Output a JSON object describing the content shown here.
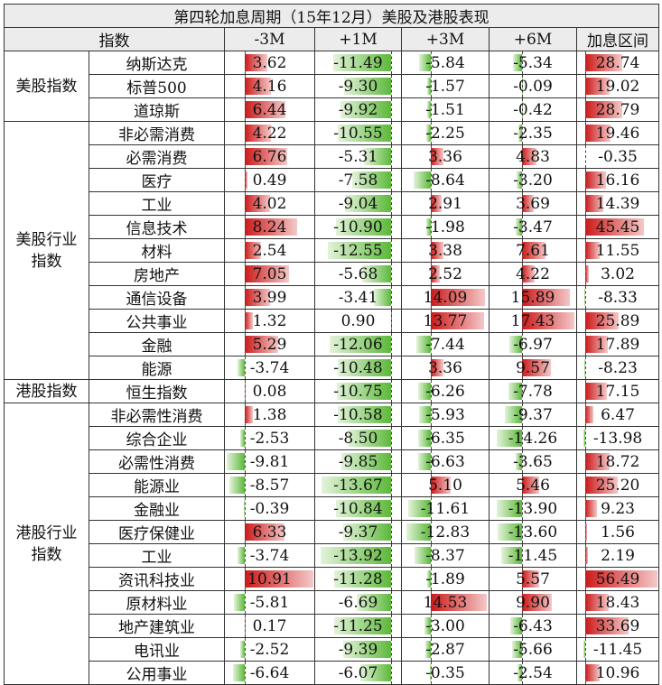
{
  "title": "第四轮加息周期（15年12月）美股及港股表现",
  "headers": [
    "指数",
    "-3M",
    "+1M",
    "+3M",
    "+6M",
    "加息区间"
  ],
  "groups": [
    {
      "label": "美股指数",
      "rows": [
        {
          "name": "纳斯达克",
          "values": [
            "3.62",
            "-11.49",
            "-5.84",
            "-5.34",
            "28.74"
          ]
        },
        {
          "name": "标普500",
          "values": [
            "4.16",
            "-9.30",
            "-1.57",
            "-0.09",
            "19.02"
          ]
        },
        {
          "name": "道琼斯",
          "values": [
            "6.44",
            "-9.92",
            "-1.51",
            "-0.42",
            "28.79"
          ]
        }
      ]
    },
    {
      "label": "美股行业指数",
      "rows": [
        {
          "name": "非必需消费",
          "values": [
            "4.22",
            "-10.55",
            "-2.25",
            "-2.35",
            "19.46"
          ]
        },
        {
          "name": "必需消费",
          "values": [
            "6.76",
            "-5.31",
            "3.36",
            "4.83",
            "-0.35"
          ]
        },
        {
          "name": "医疗",
          "values": [
            "0.49",
            "-7.58",
            "-8.64",
            "-3.20",
            "16.16"
          ]
        },
        {
          "name": "工业",
          "values": [
            "4.02",
            "-9.04",
            "2.91",
            "3.69",
            "14.39"
          ]
        },
        {
          "name": "信息技术",
          "values": [
            "8.24",
            "-10.90",
            "-1.98",
            "-3.47",
            "45.45"
          ]
        },
        {
          "name": "材料",
          "values": [
            "2.54",
            "-12.55",
            "3.38",
            "7.61",
            "11.55"
          ]
        },
        {
          "name": "房地产",
          "values": [
            "7.05",
            "-5.68",
            "2.52",
            "4.22",
            "3.02"
          ]
        },
        {
          "name": "通信设备",
          "values": [
            "3.99",
            "-3.41",
            "14.09",
            "15.89",
            "-8.33"
          ]
        },
        {
          "name": "公共事业",
          "values": [
            "1.32",
            "0.90",
            "13.77",
            "17.43",
            "25.89"
          ]
        },
        {
          "name": "金融",
          "values": [
            "5.29",
            "-12.06",
            "-7.44",
            "-6.97",
            "17.89"
          ]
        },
        {
          "name": "能源",
          "values": [
            "-3.74",
            "-10.48",
            "3.36",
            "9.57",
            "-8.23"
          ]
        }
      ]
    },
    {
      "label": "港股指数",
      "rows": [
        {
          "name": "恒生指数",
          "values": [
            "0.08",
            "-10.75",
            "-6.26",
            "-7.78",
            "17.15"
          ]
        }
      ]
    },
    {
      "label": "港股行业指数",
      "rows": [
        {
          "name": "非必需性消费",
          "values": [
            "1.38",
            "-10.58",
            "-5.93",
            "-9.37",
            "6.47"
          ]
        },
        {
          "name": "综合企业",
          "values": [
            "-2.53",
            "-8.50",
            "-6.35",
            "-14.26",
            "-13.98"
          ]
        },
        {
          "name": "必需性消费",
          "values": [
            "-9.81",
            "-9.85",
            "-6.63",
            "-3.65",
            "18.72"
          ]
        },
        {
          "name": "能源业",
          "values": [
            "-8.57",
            "-13.67",
            "5.10",
            "5.46",
            "25.20"
          ]
        },
        {
          "name": "金融业",
          "values": [
            "-0.39",
            "-10.84",
            "-11.61",
            "-13.90",
            "9.23"
          ]
        },
        {
          "name": "医疗保健业",
          "values": [
            "6.33",
            "-9.37",
            "-12.83",
            "-13.60",
            "1.56"
          ]
        },
        {
          "name": "工业",
          "values": [
            "-3.74",
            "-13.92",
            "-8.37",
            "-11.45",
            "2.19"
          ]
        },
        {
          "name": "资讯科技业",
          "values": [
            "10.91",
            "-11.28",
            "-1.89",
            "5.57",
            "56.49"
          ]
        },
        {
          "name": "原材料业",
          "values": [
            "-5.81",
            "-6.69",
            "14.53",
            "9.90",
            "18.43"
          ]
        },
        {
          "name": "地产建筑业",
          "values": [
            "0.17",
            "-11.25",
            "-3.00",
            "-6.43",
            "33.69"
          ]
        },
        {
          "name": "电讯业",
          "values": [
            "-2.52",
            "-9.39",
            "-2.87",
            "-5.66",
            "-11.45"
          ]
        },
        {
          "name": "公用事业",
          "values": [
            "-6.64",
            "-6.07",
            "-0.35",
            "-2.54",
            "10.96"
          ]
        }
      ]
    }
  ],
  "colors": {
    "positive": "#cc1a1a",
    "negative": "#5cb83a",
    "header_bg": "#ececec"
  }
}
